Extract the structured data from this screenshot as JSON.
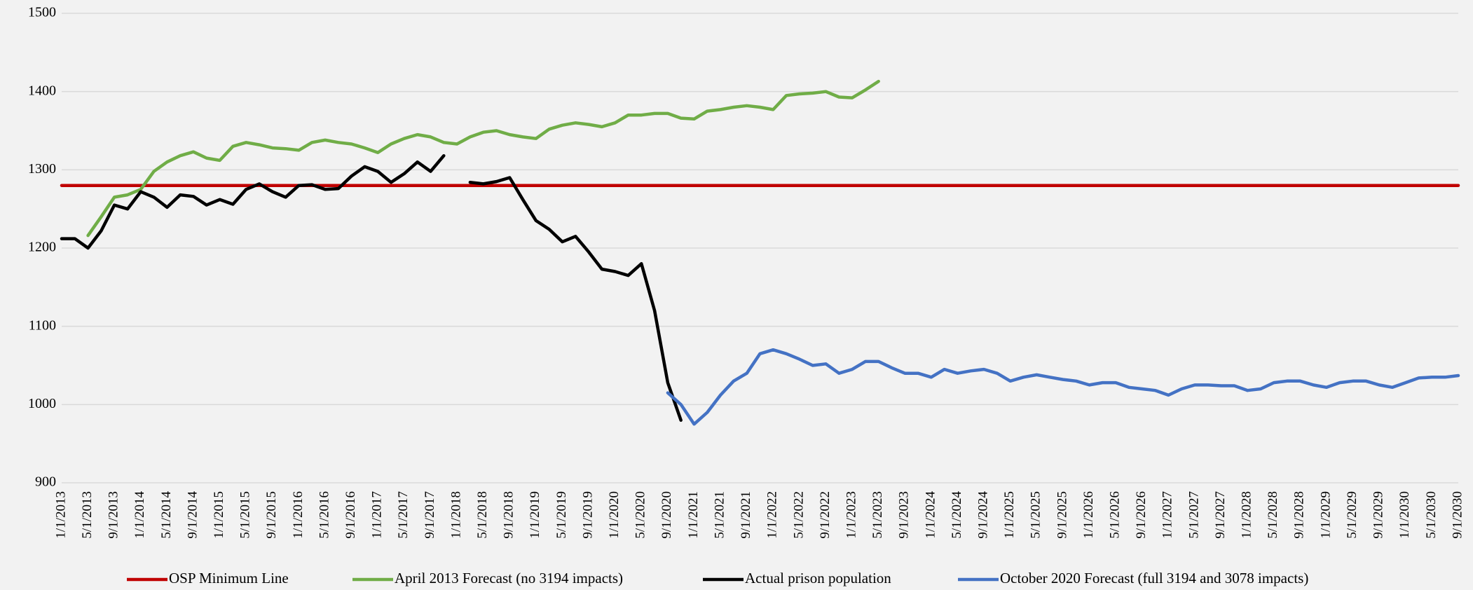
{
  "chart_data": {
    "type": "line",
    "categories": [
      "1/1/2013",
      null,
      "5/1/2013",
      null,
      "9/1/2013",
      null,
      "1/1/2014",
      null,
      "5/1/2014",
      null,
      "9/1/2014",
      null,
      "1/1/2015",
      null,
      "5/1/2015",
      null,
      "9/1/2015",
      null,
      "1/1/2016",
      null,
      "5/1/2016",
      null,
      "9/1/2016",
      null,
      "1/1/2017",
      null,
      "5/1/2017",
      null,
      "9/1/2017",
      null,
      "1/1/2018",
      null,
      "5/1/2018",
      null,
      "9/1/2018",
      null,
      "1/1/2019",
      null,
      "5/1/2019",
      null,
      "9/1/2019",
      null,
      "1/1/2020",
      null,
      "5/1/2020",
      null,
      "9/1/2020",
      null,
      "1/1/2021",
      null,
      "5/1/2021",
      null,
      "9/1/2021",
      null,
      "1/1/2022",
      null,
      "5/1/2022",
      null,
      "9/1/2022",
      null,
      "1/1/2023",
      null,
      "5/1/2023",
      null,
      "9/1/2023",
      null,
      "1/1/2024",
      null,
      "5/1/2024",
      null,
      "9/1/2024",
      null,
      "1/1/2025",
      null,
      "5/1/2025",
      null,
      "9/1/2025",
      null,
      "1/1/2026",
      null,
      "5/1/2026",
      null,
      "9/1/2026",
      null,
      "1/1/2027",
      null,
      "5/1/2027",
      null,
      "9/1/2027",
      null,
      "1/1/2028",
      null,
      "5/1/2028",
      null,
      "9/1/2028",
      null,
      "1/1/2029",
      null,
      "5/1/2029",
      null,
      "9/1/2029",
      null,
      "1/1/2030",
      null,
      "5/1/2030",
      null,
      "9/1/2030"
    ],
    "series": [
      {
        "name": "OSP Minimum Line",
        "color": "#c00000",
        "values": [
          1280,
          1280,
          1280,
          1280,
          1280,
          1280,
          1280,
          1280,
          1280,
          1280,
          1280,
          1280,
          1280,
          1280,
          1280,
          1280,
          1280,
          1280,
          1280,
          1280,
          1280,
          1280,
          1280,
          1280,
          1280,
          1280,
          1280,
          1280,
          1280,
          1280,
          1280,
          1280,
          1280,
          1280,
          1280,
          1280,
          1280,
          1280,
          1280,
          1280,
          1280,
          1280,
          1280,
          1280,
          1280,
          1280,
          1280,
          1280,
          1280,
          1280,
          1280,
          1280,
          1280,
          1280,
          1280,
          1280,
          1280,
          1280,
          1280,
          1280,
          1280,
          1280,
          1280,
          1280,
          1280,
          1280,
          1280,
          1280,
          1280,
          1280,
          1280,
          1280,
          1280,
          1280,
          1280,
          1280,
          1280,
          1280,
          1280,
          1280,
          1280,
          1280,
          1280,
          1280,
          1280,
          1280,
          1280,
          1280,
          1280,
          1280,
          1280,
          1280,
          1280,
          1280,
          1280,
          1280,
          1280,
          1280,
          1280,
          1280,
          1280,
          1280,
          1280,
          1280,
          1280,
          1280,
          1280
        ]
      },
      {
        "name": "April 2013 Forecast (no 3194 impacts)",
        "color": "#70ad47",
        "values": [
          null,
          null,
          1216,
          1240,
          1265,
          1268,
          1275,
          1298,
          1310,
          1318,
          1323,
          1315,
          1312,
          1330,
          1335,
          1332,
          1328,
          1327,
          1325,
          1335,
          1338,
          1335,
          1333,
          1328,
          1322,
          1333,
          1340,
          1345,
          1342,
          1335,
          1333,
          1342,
          1348,
          1350,
          1345,
          1342,
          1340,
          1352,
          1357,
          1360,
          1358,
          1355,
          1360,
          1370,
          1370,
          1372,
          1372,
          1366,
          1365,
          1375,
          1377,
          1380,
          1382,
          1380,
          1377,
          1395,
          1397,
          1398,
          1400,
          1393,
          1392,
          1402,
          1413,
          null,
          null,
          null,
          null,
          null,
          null,
          null,
          null,
          null,
          null,
          null,
          null,
          null,
          null,
          null,
          null,
          null,
          null,
          null,
          null,
          null,
          null,
          null,
          null,
          null,
          null,
          null,
          null,
          null,
          null,
          null,
          null,
          null,
          null,
          null,
          null,
          null,
          null,
          null,
          null,
          null,
          null,
          null,
          null
        ]
      },
      {
        "name": "Actual prison population",
        "color": "#000000",
        "values": [
          1212,
          1212,
          1200,
          1222,
          1255,
          1250,
          1272,
          1265,
          1252,
          1268,
          1266,
          1255,
          1262,
          1256,
          1275,
          1282,
          1272,
          1265,
          1280,
          1281,
          1275,
          1276,
          1292,
          1304,
          1298,
          1284,
          1295,
          1310,
          1298,
          1318,
          null,
          1284,
          1282,
          1285,
          1290,
          1262,
          1235,
          1224,
          1208,
          1215,
          1195,
          1173,
          1170,
          1165,
          1180,
          1120,
          1028,
          980,
          null,
          null,
          null,
          null,
          null,
          null,
          null,
          null,
          null,
          null,
          null,
          null,
          null,
          null,
          null,
          null,
          null,
          null,
          null,
          null,
          null,
          null,
          null,
          null,
          null,
          null,
          null,
          null,
          null,
          null,
          null,
          null,
          null,
          null,
          null,
          null,
          null,
          null,
          null,
          null,
          null,
          null,
          null,
          null,
          null,
          null,
          null,
          null,
          null,
          null,
          null,
          null,
          null,
          null,
          null,
          null,
          null,
          null,
          null
        ]
      },
      {
        "name": "October 2020 Forecast  (full 3194 and 3078 impacts)",
        "color": "#4472c4",
        "values": [
          null,
          null,
          null,
          null,
          null,
          null,
          null,
          null,
          null,
          null,
          null,
          null,
          null,
          null,
          null,
          null,
          null,
          null,
          null,
          null,
          null,
          null,
          null,
          null,
          null,
          null,
          null,
          null,
          null,
          null,
          null,
          null,
          null,
          null,
          null,
          null,
          null,
          null,
          null,
          null,
          null,
          null,
          null,
          null,
          null,
          null,
          1015,
          1000,
          975,
          990,
          1012,
          1030,
          1040,
          1065,
          1070,
          1065,
          1058,
          1050,
          1052,
          1040,
          1045,
          1055,
          1055,
          1047,
          1040,
          1040,
          1035,
          1045,
          1040,
          1043,
          1045,
          1040,
          1030,
          1035,
          1038,
          1035,
          1032,
          1030,
          1025,
          1028,
          1028,
          1022,
          1020,
          1018,
          1012,
          1020,
          1025,
          1025,
          1024,
          1024,
          1018,
          1020,
          1028,
          1030,
          1030,
          1025,
          1022,
          1028,
          1030,
          1030,
          1025,
          1022,
          1028,
          1034,
          1035,
          1035,
          1037
        ]
      }
    ],
    "ylim": [
      900,
      1500
    ],
    "yticks": [
      900,
      1000,
      1100,
      1200,
      1300,
      1400,
      1500
    ],
    "grid": true,
    "legend": "bottom"
  }
}
